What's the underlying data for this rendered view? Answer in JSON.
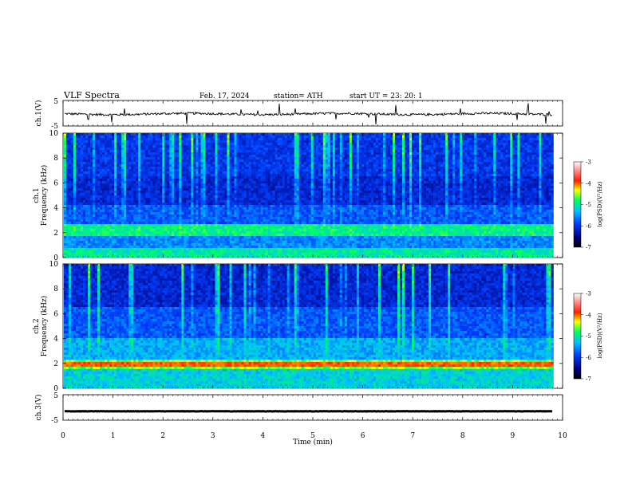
{
  "header": {
    "title": "VLF  Spectra",
    "date": "Feb. 17, 2024",
    "station": "station= ATH",
    "start_ut": "start  UT  =   23: 20: 1"
  },
  "chart_data": [
    {
      "type": "line",
      "panel": "ch1-waveform",
      "ylabel": "ch.1(V)",
      "yticks": [
        "5",
        "-5"
      ],
      "ylim": [
        -5,
        5
      ],
      "xlim": [
        0,
        10
      ],
      "series": [
        {
          "values_note": "",
          "x_end": 9.8,
          "level": -0.3,
          "color": "#000000"
        }
      ]
    },
    {
      "type": "heatmap",
      "panel": "ch1-spectrogram",
      "ylabel": "ch.1\nFrequency  (kHz)",
      "ylabel_line1": "ch.1",
      "ylabel_line2": "Frequency  (kHz)",
      "yticks": [
        "10",
        "8",
        "6",
        "4",
        "2",
        "0"
      ],
      "ylim": [
        0,
        10
      ],
      "xlim": [
        0,
        10
      ],
      "x_end": 9.8,
      "colorbar": {
        "label": "log(PSD)(V²/Hz)",
        "ticks": [
          "-3",
          "-4",
          "-5",
          "-6",
          "-7"
        ],
        "range": [
          -7,
          -3
        ]
      }
    },
    {
      "type": "heatmap",
      "panel": "ch2-spectrogram",
      "ylabel_line1": "ch.2",
      "ylabel_line2": "Frequency  (kHz)",
      "yticks": [
        "10",
        "8",
        "6",
        "4",
        "2",
        "0"
      ],
      "ylim": [
        0,
        10
      ],
      "xlim": [
        0,
        10
      ],
      "x_end": 9.8,
      "colorbar": {
        "label": "log(PSD)(V²/Hz)",
        "ticks": [
          "-3",
          "-4",
          "-5",
          "-6",
          "-7"
        ],
        "range": [
          -7,
          -3
        ]
      }
    },
    {
      "type": "line",
      "panel": "ch3-waveform",
      "ylabel": "ch.3(V)",
      "yticks": [
        "5",
        "-5"
      ],
      "ylim": [
        -5,
        5
      ],
      "xlim": [
        0,
        10
      ],
      "series": [
        {
          "x_end": 9.8,
          "level": -1.5,
          "color": "#000000"
        }
      ]
    }
  ],
  "xaxis": {
    "label": "Time  (min)",
    "ticks": [
      "0",
      "1",
      "2",
      "3",
      "4",
      "5",
      "6",
      "7",
      "8",
      "9",
      "10"
    ]
  }
}
